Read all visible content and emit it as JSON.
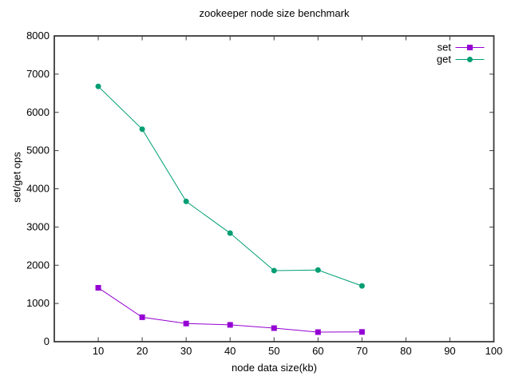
{
  "chart_data": {
    "type": "line",
    "title": "zookeeper node size benchmark",
    "xlabel": "node data size(kb)",
    "ylabel": "set/get ops",
    "x": [
      10,
      20,
      30,
      40,
      50,
      60,
      70
    ],
    "series": [
      {
        "name": "set",
        "color": "#9400d3",
        "marker": "square",
        "values": [
          1410,
          640,
          475,
          440,
          355,
          250,
          255
        ]
      },
      {
        "name": "get",
        "color": "#009e73",
        "marker": "circle",
        "values": [
          6680,
          5560,
          3670,
          2840,
          1860,
          1875,
          1460
        ]
      }
    ],
    "xlim": [
      0,
      100
    ],
    "ylim": [
      0,
      8000
    ],
    "xticks": [
      10,
      20,
      30,
      40,
      50,
      60,
      70,
      80,
      90,
      100
    ],
    "yticks": [
      0,
      1000,
      2000,
      3000,
      4000,
      5000,
      6000,
      7000,
      8000
    ],
    "grid": false,
    "legend": {
      "position": "top-right-inside",
      "entries": [
        "set",
        "get"
      ]
    },
    "colors": {
      "axis": "#3a3a3a",
      "text": "#000000",
      "background": "#ffffff"
    }
  }
}
